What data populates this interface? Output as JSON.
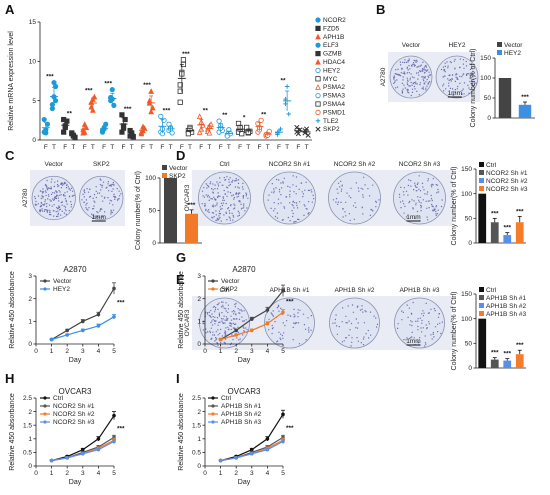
{
  "panel_labels": [
    "A",
    "B",
    "C",
    "D",
    "E",
    "F",
    "G",
    "H",
    "I"
  ],
  "colors": {
    "NCOR2": "#1f9ad9",
    "FZD5": "#333333",
    "APH1B": "#f05a28",
    "ELF3": "#1f9ad9",
    "GZMB": "#333333",
    "HDAC4": "#f05a28",
    "HEY2": "#1f9ad9",
    "MYC": "#333333",
    "PSMA2": "#f05a28",
    "PSMA3": "#1f9ad9",
    "PSMA4": "#333333",
    "PSMD1": "#f05a28",
    "TLE2": "#1f9ad9",
    "SKP2": "#333333",
    "vector": "#444444",
    "blue": "#3d8fe0",
    "orange": "#f07a28",
    "ctrl": "#111111",
    "sh1": "#555555",
    "sh2": "#5a8fe8",
    "sh3": "#f57c28"
  },
  "images": {
    "B": {
      "labels": [
        "Vector",
        "HEY2"
      ],
      "side": "A2780",
      "scale": "1mm"
    },
    "C": {
      "labels": [
        "Vector",
        "SKP2"
      ],
      "side": "A2780",
      "scale": "1mm"
    },
    "D": {
      "labels": [
        "Ctrl",
        "NCOR2 Sh #1",
        "NCOR2 Sh #2",
        "NCOR2 Sh #3"
      ],
      "side": "OVCAR3",
      "scale": "1mm"
    },
    "E": {
      "labels": [
        "Ctrl",
        "APH1B Sh #1",
        "APH1B Sh #2",
        "APH1B Sh #3"
      ],
      "side": "OVCAR3",
      "scale": "1mm"
    }
  },
  "chart_data": [
    {
      "id": "A",
      "type": "scatter",
      "ylabel": "Relative mRNA expression level",
      "ylim": [
        0,
        15
      ],
      "yticks": [
        0,
        5,
        10,
        15
      ],
      "xtick_labels": [
        "F",
        "T"
      ],
      "legend_placement": "right",
      "genes": [
        {
          "name": "NCOR2",
          "F": [
            1,
            1.3,
            2,
            2.6,
            0.9
          ],
          "T": [
            4.5,
            5.5,
            6.8,
            4,
            7.3,
            5
          ],
          "sig": "***",
          "marker": "circle"
        },
        {
          "name": "FZD5",
          "F": [
            1,
            1.6,
            2.4,
            2.6,
            1.8
          ],
          "T": [
            0.8,
            0.5,
            0.3,
            0.9,
            0.6
          ],
          "sig": "**",
          "marker": "square"
        },
        {
          "name": "APH1B",
          "F": [
            1.3,
            1,
            1.6,
            0.9,
            2
          ],
          "T": [
            4.8,
            5.2,
            5.5,
            4.2,
            3.8
          ],
          "sig": "***",
          "marker": "triangle"
        },
        {
          "name": "ELF3",
          "F": [
            1,
            1.4,
            2,
            1.2,
            1.6
          ],
          "T": [
            5.4,
            6.4,
            4.4,
            5,
            5.2
          ],
          "sig": "***",
          "marker": "circle"
        },
        {
          "name": "GZMB",
          "F": [
            1,
            1.8,
            2.6,
            3.2,
            1.5
          ],
          "T": [
            0.5,
            0.9,
            0.4,
            1.2,
            0.6
          ],
          "sig": "***",
          "marker": "square"
        },
        {
          "name": "HDAC4",
          "F": [
            0.8,
            1.2,
            1.5,
            1,
            1.7
          ],
          "T": [
            5,
            6.2,
            4.1,
            4.7,
            3.6
          ],
          "sig": "***",
          "marker": "triangle"
        },
        {
          "name": "HEY2",
          "F": [
            1,
            1.4,
            2.5,
            3,
            0.8
          ],
          "T": [
            1.2,
            1.6,
            0.9,
            2,
            1.4
          ],
          "sig": "***",
          "marker": "circle-open"
        },
        {
          "name": "MYC",
          "F": [
            4.8,
            8.6,
            9.6,
            7,
            8.4,
            10.2,
            6.2
          ],
          "T": [
            1.2,
            1.6,
            1,
            0.8,
            1.4
          ],
          "sig": "***",
          "marker": "square-open"
        },
        {
          "name": "PSMA2",
          "F": [
            1,
            1.4,
            1.9,
            3,
            2.3
          ],
          "T": [
            1.4,
            1.8,
            2,
            1.1,
            0.9
          ],
          "sig": "**",
          "marker": "triangle-open"
        },
        {
          "name": "PSMA3",
          "F": [
            1,
            1.8,
            1.2,
            2.4,
            1.5
          ],
          "T": [
            0.6,
            1,
            0.8,
            0.5,
            1.3
          ],
          "sig": "**",
          "marker": "circle-open"
        },
        {
          "name": "PSMA4",
          "F": [
            1,
            1.4,
            0.8,
            2.1,
            1.6
          ],
          "T": [
            1.2,
            0.9,
            1.1,
            1.6,
            1
          ],
          "sig": "*",
          "marker": "square-open"
        },
        {
          "name": "PSMD1",
          "F": [
            1,
            1.3,
            2.5,
            2.1,
            1.6
          ],
          "T": [
            0.5,
            0.8,
            1.1,
            0.7,
            0.6
          ],
          "sig": "**",
          "marker": "circle-open"
        },
        {
          "name": "TLE2",
          "F": [
            0.7,
            1,
            1.4,
            0.9
          ],
          "T": [
            4.6,
            6.8,
            3.3,
            5.2
          ],
          "sig": "**",
          "marker": "plus"
        },
        {
          "name": "SKP2",
          "F": [
            1.6,
            0.8,
            1.3,
            1
          ],
          "T": [
            0.9,
            1.4,
            0.6,
            1.2
          ],
          "sig": "",
          "marker": "x"
        }
      ]
    },
    {
      "id": "B",
      "type": "bar",
      "ylabel": "Colony number(% of Ctrl)",
      "ylim": [
        0,
        150
      ],
      "yticks": [
        0,
        50,
        100,
        150
      ],
      "series": [
        {
          "name": "Vector",
          "value": 100,
          "err": 0,
          "color_key": "vector"
        },
        {
          "name": "HEY2",
          "value": 33,
          "err": 7,
          "color_key": "blue",
          "sig": "***"
        }
      ]
    },
    {
      "id": "C",
      "type": "bar",
      "ylabel": "Colony number(% of Ctrl)",
      "ylim": [
        0,
        100
      ],
      "yticks": [
        0,
        50,
        100
      ],
      "series": [
        {
          "name": "Vector",
          "value": 100,
          "err": 0,
          "color_key": "vector"
        },
        {
          "name": "SKP2",
          "value": 45,
          "err": 6,
          "color_key": "orange",
          "sig": "***"
        }
      ]
    },
    {
      "id": "D",
      "type": "bar",
      "ylabel": "Colony number(% of Ctrl)",
      "ylim": [
        0,
        150
      ],
      "yticks": [
        0,
        50,
        100,
        150
      ],
      "series": [
        {
          "name": "Ctrl",
          "value": 100,
          "err": 0,
          "color_key": "ctrl"
        },
        {
          "name": "NCOR2 Sh #1",
          "value": 42,
          "err": 8,
          "color_key": "sh1",
          "sig": "***"
        },
        {
          "name": "NCOR2 Sh #2",
          "value": 16,
          "err": 5,
          "color_key": "sh2",
          "sig": "***"
        },
        {
          "name": "NCOR2 Sh #3",
          "value": 42,
          "err": 12,
          "color_key": "sh3",
          "sig": "***"
        }
      ]
    },
    {
      "id": "E",
      "type": "bar",
      "ylabel": "Colony number(% of Ctrl)",
      "ylim": [
        0,
        150
      ],
      "yticks": [
        0,
        50,
        100,
        150
      ],
      "series": [
        {
          "name": "Ctrl",
          "value": 100,
          "err": 0,
          "color_key": "ctrl"
        },
        {
          "name": "APH1B Sh #1",
          "value": 17,
          "err": 4,
          "color_key": "sh1",
          "sig": "***"
        },
        {
          "name": "APH1B Sh #2",
          "value": 15,
          "err": 4,
          "color_key": "sh2",
          "sig": "***"
        },
        {
          "name": "APH1B Sh #3",
          "value": 28,
          "err": 8,
          "color_key": "sh3",
          "sig": "***"
        }
      ]
    },
    {
      "id": "F",
      "type": "line",
      "title": "A2870",
      "xlabel": "Day",
      "ylabel": "Relative 450 absorbance",
      "x": [
        1,
        2,
        3,
        4,
        5
      ],
      "xlim": [
        0,
        5
      ],
      "ylim": [
        0,
        3
      ],
      "yticks": [
        0,
        1,
        2,
        3
      ],
      "sig": "***",
      "series": [
        {
          "name": "Vector",
          "color_key": "vector",
          "values": [
            0.2,
            0.6,
            1.0,
            1.3,
            2.45
          ],
          "err": [
            0.03,
            0.05,
            0.08,
            0.1,
            0.25
          ]
        },
        {
          "name": "HEY2",
          "color_key": "blue",
          "values": [
            0.2,
            0.4,
            0.6,
            0.8,
            1.2
          ],
          "err": [
            0.03,
            0.04,
            0.06,
            0.08,
            0.1
          ]
        }
      ]
    },
    {
      "id": "G",
      "type": "line",
      "title": "A2870",
      "xlabel": "Day",
      "ylabel": "Relative 450 absorbance",
      "x": [
        1,
        2,
        3,
        4,
        5
      ],
      "xlim": [
        0,
        5
      ],
      "ylim": [
        0,
        3
      ],
      "yticks": [
        0,
        1,
        2,
        3
      ],
      "sig": "***",
      "series": [
        {
          "name": "Vector",
          "color_key": "vector",
          "values": [
            0.2,
            0.6,
            1.1,
            1.5,
            2.35
          ],
          "err": [
            0.03,
            0.05,
            0.08,
            0.12,
            0.25
          ]
        },
        {
          "name": "SKP2",
          "color_key": "orange",
          "values": [
            0.2,
            0.4,
            0.6,
            0.9,
            1.4
          ],
          "err": [
            0.03,
            0.04,
            0.06,
            0.08,
            0.12
          ]
        }
      ]
    },
    {
      "id": "H",
      "type": "line",
      "title": "OVCAR3",
      "xlabel": "Day",
      "ylabel": "Relative 450 absorbance",
      "x": [
        1,
        2,
        3,
        4,
        5
      ],
      "xlim": [
        0,
        5
      ],
      "ylim": [
        0,
        2.5
      ],
      "yticks": [
        0,
        0.5,
        1,
        1.5,
        2,
        2.5
      ],
      "sig": "***",
      "series": [
        {
          "name": "Ctrl",
          "color_key": "ctrl",
          "values": [
            0.2,
            0.35,
            0.6,
            1.0,
            1.85
          ],
          "err": [
            0.02,
            0.03,
            0.05,
            0.08,
            0.15
          ]
        },
        {
          "name": "NCOR2 Sh #1",
          "color_key": "sh1",
          "values": [
            0.2,
            0.3,
            0.5,
            0.7,
            1.05
          ],
          "err": [
            0.02,
            0.03,
            0.04,
            0.05,
            0.08
          ]
        },
        {
          "name": "NCOR2 Sh #2",
          "color_key": "sh3",
          "values": [
            0.2,
            0.3,
            0.45,
            0.65,
            0.95
          ],
          "err": [
            0.02,
            0.03,
            0.04,
            0.05,
            0.08
          ]
        },
        {
          "name": "NCOR2 Sh #3",
          "color_key": "sh2",
          "values": [
            0.2,
            0.3,
            0.45,
            0.6,
            0.9
          ],
          "err": [
            0.02,
            0.03,
            0.04,
            0.05,
            0.08
          ]
        }
      ]
    },
    {
      "id": "I",
      "type": "line",
      "title": "OVCAR3",
      "xlabel": "Day",
      "ylabel": "Relative 450 absorbance",
      "x": [
        1,
        2,
        3,
        4,
        5
      ],
      "xlim": [
        0,
        5
      ],
      "ylim": [
        0,
        2.5
      ],
      "yticks": [
        0,
        0.5,
        1,
        1.5,
        2,
        2.5
      ],
      "sig": "***",
      "series": [
        {
          "name": "Ctrl",
          "color_key": "ctrl",
          "values": [
            0.2,
            0.35,
            0.6,
            1.0,
            1.9
          ],
          "err": [
            0.02,
            0.03,
            0.05,
            0.08,
            0.15
          ]
        },
        {
          "name": "APH1B Sh #1",
          "color_key": "sh1",
          "values": [
            0.2,
            0.3,
            0.5,
            0.7,
            1.05
          ],
          "err": [
            0.02,
            0.03,
            0.04,
            0.05,
            0.08
          ]
        },
        {
          "name": "APH1B Sh #2",
          "color_key": "sh3",
          "values": [
            0.2,
            0.3,
            0.45,
            0.65,
            0.95
          ],
          "err": [
            0.02,
            0.03,
            0.04,
            0.05,
            0.08
          ]
        },
        {
          "name": "APH1B Sh #3",
          "color_key": "sh2",
          "values": [
            0.2,
            0.3,
            0.45,
            0.6,
            0.9
          ],
          "err": [
            0.02,
            0.03,
            0.04,
            0.05,
            0.08
          ]
        }
      ]
    }
  ]
}
